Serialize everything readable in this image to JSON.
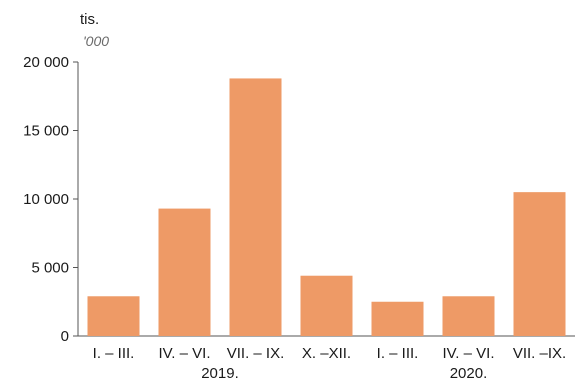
{
  "chart_data": {
    "type": "bar",
    "title": "",
    "xlabel": "",
    "ylabel": "",
    "unit_label": "tis.",
    "unit_label_alt": "'000",
    "categories": [
      "I. – III.",
      "IV. – VI.",
      "VII. – IX.",
      "X. –XII.",
      "I. – III.",
      "IV. – VI.",
      "VII. –IX."
    ],
    "groups": [
      {
        "label": "2019.",
        "start": 0,
        "end": 3
      },
      {
        "label": "2020.",
        "start": 4,
        "end": 6
      }
    ],
    "values": [
      2900,
      9300,
      18800,
      4400,
      2500,
      2900,
      10500
    ],
    "ylim": [
      0,
      20000
    ],
    "yticks": [
      0,
      5000,
      10000,
      15000,
      20000
    ],
    "ytick_labels": [
      "0",
      "5 000",
      "10 000",
      "15 000",
      "20 000"
    ],
    "bar_color": "#EE9A66",
    "grid": false,
    "legend": "none"
  }
}
